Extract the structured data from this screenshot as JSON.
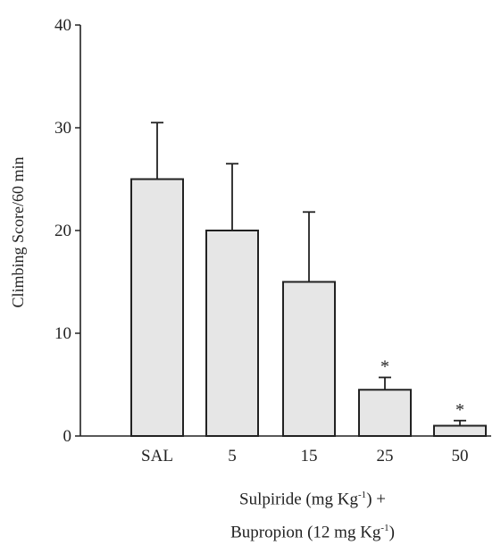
{
  "chart_data": {
    "type": "bar",
    "categories": [
      "SAL",
      "5",
      "15",
      "25",
      "50"
    ],
    "values": [
      25,
      20,
      15,
      4.5,
      1
    ],
    "errors": [
      5.5,
      6.5,
      6.8,
      1.2,
      0.5
    ],
    "significance": [
      "",
      "",
      "",
      "*",
      "*"
    ],
    "ylim": [
      0,
      40
    ],
    "yticks": [
      "0",
      "10",
      "20",
      "30",
      "40"
    ],
    "ylabel": "Climbing Score/60 min",
    "xlabel_line1": {
      "text": "Sulpiride (mg  Kg",
      "sup": "-1",
      "tail": ") +"
    },
    "xlabel_line2": {
      "text": "Bupropion (12 mg Kg",
      "sup": "-1",
      "tail": ")"
    },
    "grid": false,
    "colors": {
      "bar_fill": "#e6e6e6",
      "bar_stroke": "#222222"
    }
  }
}
